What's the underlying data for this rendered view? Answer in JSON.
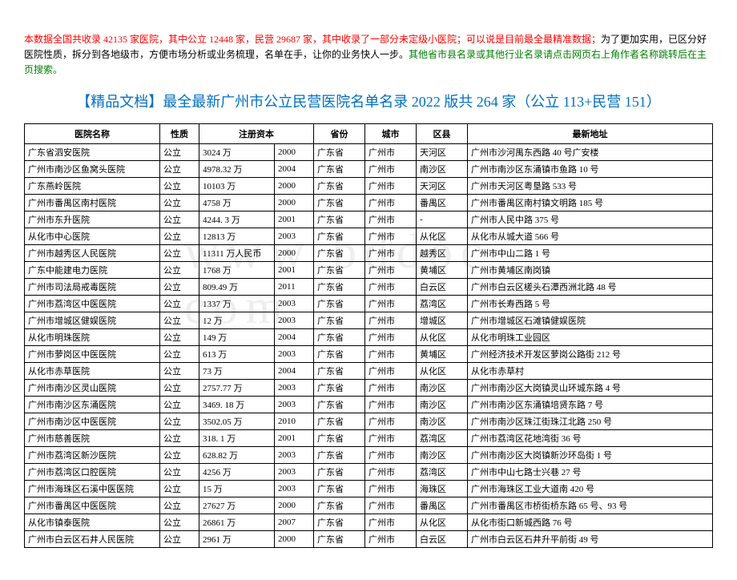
{
  "intro": {
    "line1_red": "本数据全国共收录 42135 家医院，其中公立 12448 家，民营 29687 家，其中收录了一部分未定级小医院；可以说是目前最全最精准数据；",
    "line1_black": "为了更加实用，已区分好医院性质，拆分到各地级市，方便市场分析或业务梳理，名单在手，让你的业务快人一步。",
    "line1_green": "其他省市县名录或其他行业名录请点击网页右上角作者名称跳转后在主页搜索。"
  },
  "title": "【精品文档】最全最新广州市公立民营医院名单名录 2022 版共 264 家（公立 113+民营 151）",
  "headers": {
    "name": "医院名称",
    "type": "性质",
    "capital": "注册资本",
    "year": "",
    "province": "省份",
    "city": "城市",
    "district": "区县",
    "address": "最新地址"
  },
  "rows": [
    {
      "name": "广东省泗安医院",
      "type": "公立",
      "capital": "3024 万",
      "year": "2000",
      "province": "广东省",
      "city": "广州市",
      "district": "天河区",
      "address": "广州市沙河禺东西路 40 号广安楼"
    },
    {
      "name": "广州市南沙区鱼窝头医院",
      "type": "公立",
      "capital": "4978.32 万",
      "year": "2004",
      "province": "广东省",
      "city": "广州市",
      "district": "南沙区",
      "address": "广州市南沙区东涌镇市鱼路 10 号"
    },
    {
      "name": "广东燕岭医院",
      "type": "公立",
      "capital": "10103 万",
      "year": "2000",
      "province": "广东省",
      "city": "广州市",
      "district": "天河区",
      "address": "广州市天河区粤垦路 533 号"
    },
    {
      "name": "广州市番禺区南村医院",
      "type": "公立",
      "capital": "4758 万",
      "year": "2000",
      "province": "广东省",
      "city": "广州市",
      "district": "番禺区",
      "address": "广州市番禺区南村镇文明路 185 号"
    },
    {
      "name": "广州市东升医院",
      "type": "公立",
      "capital": "4244. 3 万",
      "year": "2001",
      "province": "广东省",
      "city": "广州市",
      "district": "-",
      "address": "广州市人民中路 375 号"
    },
    {
      "name": "从化市中心医院",
      "type": "公立",
      "capital": "12813 万",
      "year": "2003",
      "province": "广东省",
      "city": "广州市",
      "district": "从化区",
      "address": "从化市从城大道 566 号"
    },
    {
      "name": "广州市越秀区人民医院",
      "type": "公立",
      "capital": "11311 万人民币",
      "year": "2000",
      "province": "广东省",
      "city": "广州市",
      "district": "越秀区",
      "address": "广州市中山二路 1 号"
    },
    {
      "name": "广东中能建电力医院",
      "type": "公立",
      "capital": "1768 万",
      "year": "2001",
      "province": "广东省",
      "city": "广州市",
      "district": "黄埔区",
      "address": "广州市黄埔区南岗镇"
    },
    {
      "name": "广州市司法局戒毒医院",
      "type": "公立",
      "capital": "809.49 万",
      "year": "2011",
      "province": "广东省",
      "city": "广州市",
      "district": "白云区",
      "address": "广州市白云区槎头石潭西洲北路 48 号"
    },
    {
      "name": "广州市荔湾区中医医院",
      "type": "公立",
      "capital": "1337 万",
      "year": "2003",
      "province": "广东省",
      "city": "广州市",
      "district": "荔湾区",
      "address": "广州市长寿西路 5 号"
    },
    {
      "name": "广州市增城区健娱医院",
      "type": "公立",
      "capital": "12 万",
      "year": "2003",
      "province": "广东省",
      "city": "广州市",
      "district": "增城区",
      "address": "广州市增城区石滩镇健娱医院"
    },
    {
      "name": "从化市明珠医院",
      "type": "公立",
      "capital": "149 万",
      "year": "2004",
      "province": "广东省",
      "city": "广州市",
      "district": "从化区",
      "address": "从化市明珠工业园区"
    },
    {
      "name": "广州市萝岗区中医医院",
      "type": "公立",
      "capital": "613 万",
      "year": "2003",
      "province": "广东省",
      "city": "广州市",
      "district": "黄埔区",
      "address": "广州经济技术开发区萝岗公路街 212 号"
    },
    {
      "name": "从化市赤草医院",
      "type": "公立",
      "capital": "73 万",
      "year": "2004",
      "province": "广东省",
      "city": "广州市",
      "district": "从化区",
      "address": "从化市赤草村"
    },
    {
      "name": "广州市南沙区灵山医院",
      "type": "公立",
      "capital": "2757.77 万",
      "year": "2003",
      "province": "广东省",
      "city": "广州市",
      "district": "南沙区",
      "address": "广州市南沙区大岗镇灵山环城东路 4 号"
    },
    {
      "name": "广州市南沙区东涌医院",
      "type": "公立",
      "capital": "3469. 18 万",
      "year": "2003",
      "province": "广东省",
      "city": "广州市",
      "district": "南沙区",
      "address": "广州市南沙区东涌镇培贤东路 7 号"
    },
    {
      "name": "广州市南沙区中医医院",
      "type": "公立",
      "capital": "3502.05 万",
      "year": "2010",
      "province": "广东省",
      "city": "广州市",
      "district": "南沙区",
      "address": "广州市南沙区珠江街珠江北路 250 号"
    },
    {
      "name": "广州市慈善医院",
      "type": "公立",
      "capital": "318. 1 万",
      "year": "2001",
      "province": "广东省",
      "city": "广州市",
      "district": "荔湾区",
      "address": "广州市荔湾区花地湾街 36 号"
    },
    {
      "name": "广州市荔湾区新沙医院",
      "type": "公立",
      "capital": "628.82 万",
      "year": "2003",
      "province": "广东省",
      "city": "广州市",
      "district": "南沙区",
      "address": "广州市南沙区大岗镇新沙环岛街 1 号"
    },
    {
      "name": "广州市荔湾区口腔医院",
      "type": "公立",
      "capital": "4256 万",
      "year": "2003",
      "province": "广东省",
      "city": "广州市",
      "district": "荔湾区",
      "address": "广州市中山七路士兴巷 27 号"
    },
    {
      "name": "广州市海珠区石溪中医医院",
      "type": "公立",
      "capital": "15 万",
      "year": "2003",
      "province": "广东省",
      "city": "广州市",
      "district": "海珠区",
      "address": "广州市海珠区工业大道南 420 号"
    },
    {
      "name": "广州市番禺区中医医院",
      "type": "公立",
      "capital": "27627 万",
      "year": "2000",
      "province": "广东省",
      "city": "广州市",
      "district": "番禺区",
      "address": "广州市番禺区市桥街桥东路 65 号、93 号"
    },
    {
      "name": "从化市镇泰医院",
      "type": "公立",
      "capital": "26861 万",
      "year": "2007",
      "province": "广东省",
      "city": "广州市",
      "district": "从化区",
      "address": "从化市街口新城西路 76 号"
    },
    {
      "name": "广州市白云区石井人民医院",
      "type": "公立",
      "capital": "2961 万",
      "year": "2000",
      "province": "广东省",
      "city": "广州市",
      "district": "白云区",
      "address": "广州市白云区石井升平前街 49 号"
    }
  ]
}
